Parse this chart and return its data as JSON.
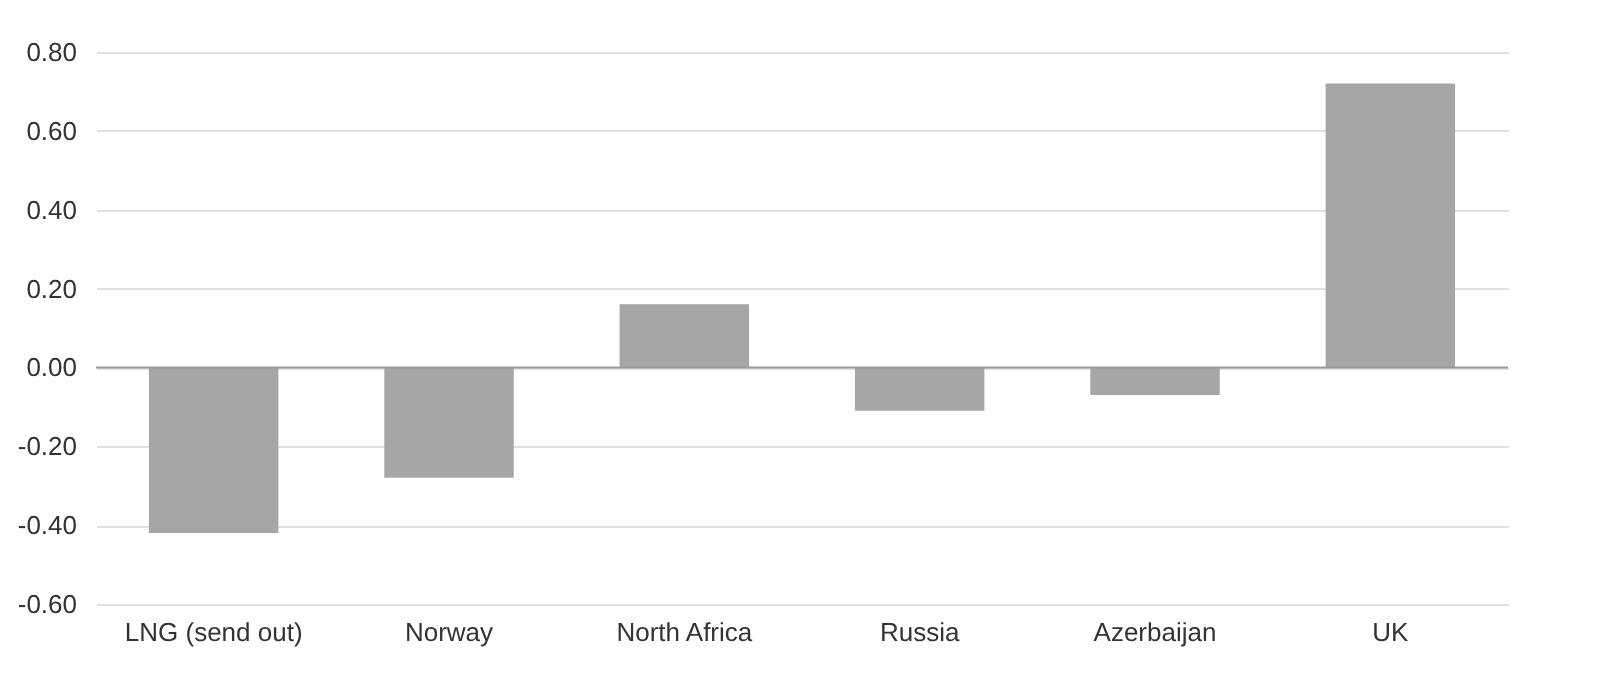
{
  "chart_data": {
    "type": "bar",
    "categories": [
      "LNG (send out)",
      "Norway",
      "North Africa",
      "Russia",
      "Azerbaijan",
      "UK"
    ],
    "values": [
      -0.42,
      -0.28,
      0.16,
      -0.11,
      -0.07,
      0.72
    ],
    "color": "#a6a6a6",
    "ylim": [
      -0.6,
      0.8
    ],
    "yticks": [
      {
        "value": -0.6,
        "label": "-0.60"
      },
      {
        "value": -0.4,
        "label": "-0.40"
      },
      {
        "value": -0.2,
        "label": "-0.20"
      },
      {
        "value": 0,
        "label": "0.00"
      },
      {
        "value": 0.2,
        "label": "0.20"
      },
      {
        "value": 0.4,
        "label": "0.40"
      },
      {
        "value": 0.6,
        "label": "0.60"
      },
      {
        "value": 0.8,
        "label": "0.80"
      }
    ],
    "ref_lines": [
      {
        "axis": "y",
        "value": 0,
        "color": "#999999"
      }
    ],
    "grid": "y"
  }
}
